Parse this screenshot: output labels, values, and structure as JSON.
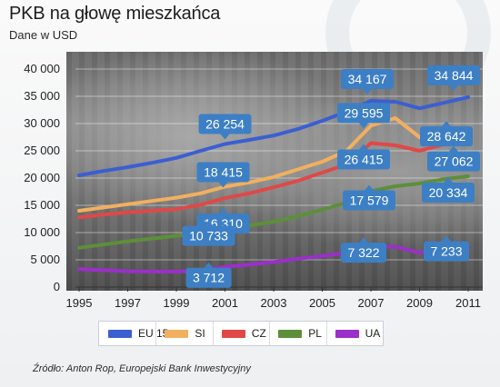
{
  "title": "PKB na głowę mieszkańca",
  "subtitle": "Dane w USD",
  "source": "Źródło: Anton Rop, Europejski Bank Inwestycyjny",
  "chart_data": {
    "type": "line",
    "x": [
      1995,
      1996,
      1997,
      1998,
      1999,
      2000,
      2001,
      2002,
      2003,
      2004,
      2005,
      2006,
      2007,
      2008,
      2009,
      2010,
      2011
    ],
    "xticks": [
      "1995",
      "1997",
      "1999",
      "2001",
      "2003",
      "2005",
      "2007",
      "2009",
      "2011"
    ],
    "yticks": [
      "0",
      "5 000",
      "10 000",
      "15 000",
      "20 000",
      "25 000",
      "30 000",
      "35 000",
      "40 000"
    ],
    "ylim": [
      0,
      40000
    ],
    "grid": true,
    "legend_position": "bottom",
    "series": [
      {
        "name": "EU 15",
        "color": "#3b5fd1",
        "values": [
          20500,
          21300,
          22000,
          22800,
          23700,
          25000,
          26254,
          27000,
          27800,
          29000,
          30500,
          32200,
          34167,
          34000,
          32800,
          33800,
          34844
        ]
      },
      {
        "name": "SI",
        "color": "#f0b060",
        "values": [
          14000,
          14600,
          15200,
          15800,
          16400,
          17200,
          18415,
          19200,
          20200,
          21600,
          23000,
          25000,
          29595,
          31000,
          27500,
          28000,
          28642
        ]
      },
      {
        "name": "CZ",
        "color": "#e04848",
        "values": [
          12800,
          13300,
          13700,
          14000,
          14300,
          15100,
          16310,
          17200,
          18300,
          19500,
          21000,
          22500,
          26415,
          26000,
          25000,
          26200,
          27062
        ]
      },
      {
        "name": "PL",
        "color": "#5d8f3a",
        "values": [
          7200,
          7800,
          8400,
          8900,
          9400,
          10000,
          10733,
          11300,
          12000,
          13000,
          14200,
          15500,
          17579,
          18500,
          19000,
          19800,
          20334
        ]
      },
      {
        "name": "UA",
        "color": "#9b2fc9",
        "values": [
          3300,
          3100,
          2900,
          2850,
          2850,
          3000,
          3712,
          4100,
          4600,
          5200,
          5700,
          6300,
          7322,
          7400,
          6300,
          6600,
          7233
        ]
      }
    ],
    "annotations": [
      {
        "series": "EU 15",
        "x": 2001,
        "label": "26 254"
      },
      {
        "series": "EU 15",
        "x": 2007,
        "label": "34 167"
      },
      {
        "series": "EU 15",
        "x": 2011,
        "label": "34 844"
      },
      {
        "series": "SI",
        "x": 2001,
        "label": "18 415"
      },
      {
        "series": "SI",
        "x": 2007,
        "label": "29 595"
      },
      {
        "series": "SI",
        "x": 2011,
        "label": "28 642"
      },
      {
        "series": "CZ",
        "x": 2001,
        "label": "16 310"
      },
      {
        "series": "CZ",
        "x": 2007,
        "label": "26 415"
      },
      {
        "series": "CZ",
        "x": 2011,
        "label": "27 062"
      },
      {
        "series": "PL",
        "x": 2001,
        "label": "10 733"
      },
      {
        "series": "PL",
        "x": 2007,
        "label": "17 579"
      },
      {
        "series": "PL",
        "x": 2011,
        "label": "20 334"
      },
      {
        "series": "UA",
        "x": 2001,
        "label": "3 712"
      },
      {
        "series": "UA",
        "x": 2007,
        "label": "7 322"
      },
      {
        "series": "UA",
        "x": 2011,
        "label": "7 233"
      }
    ]
  },
  "label_color": "#3d7fc4"
}
